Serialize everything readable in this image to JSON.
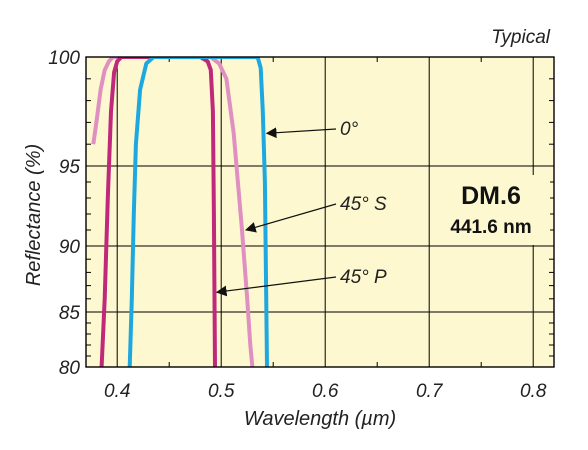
{
  "chart_data": {
    "type": "line",
    "title": "",
    "corner_note": "Typical",
    "xlabel": "Wavelength (µm)",
    "ylabel": "Reflectance (%)",
    "xlim": [
      0.37,
      0.82
    ],
    "ylim": [
      80,
      100
    ],
    "x_ticks": [
      0.4,
      0.5,
      0.6,
      0.7,
      0.8
    ],
    "x_tick_labels": [
      "0.4",
      "0.5",
      "0.6",
      "0.7",
      "0.8"
    ],
    "y_ticks": [
      80,
      85,
      90,
      95,
      100
    ],
    "y_tick_labels": [
      "80",
      "85",
      "90",
      "95",
      "100"
    ],
    "y_scale": "nonlinear (stretched near 100%)",
    "y_scale_anchors": [
      [
        80,
        80
      ],
      [
        85,
        85
      ],
      [
        90,
        90
      ],
      [
        95,
        95
      ],
      [
        100,
        100
      ]
    ],
    "grid": true,
    "badge": {
      "title": "DM.6",
      "subtitle": "441.6 nm"
    },
    "colors": {
      "plot_background": "#fdf8d0",
      "grid": "#000000",
      "zero_deg": "#1ea8e0",
      "s_pol": "#e090c0",
      "p_pol": "#c0287a"
    },
    "series": [
      {
        "label": "0°",
        "color_key": "zero_deg",
        "x": [
          0.412,
          0.414,
          0.416,
          0.418,
          0.422,
          0.428,
          0.435,
          0.445,
          0.5,
          0.535,
          0.538,
          0.54,
          0.542,
          0.544
        ],
        "y": [
          80,
          86,
          92,
          96,
          98.5,
          99.7,
          100,
          100,
          100,
          100,
          99.5,
          97.5,
          94,
          80
        ]
      },
      {
        "label": "45° S",
        "color_key": "s_pol",
        "x": [
          0.377,
          0.38,
          0.384,
          0.388,
          0.392,
          0.396,
          0.4,
          0.408,
          0.43,
          0.49,
          0.498,
          0.505,
          0.512,
          0.52,
          0.525,
          0.528,
          0.53
        ],
        "y": [
          96,
          97,
          98.5,
          99.4,
          99.8,
          100,
          100,
          100,
          100,
          100,
          99.7,
          99,
          96.5,
          91,
          86,
          82,
          80
        ]
      },
      {
        "label": "45° P",
        "color_key": "p_pol",
        "x": [
          0.385,
          0.388,
          0.391,
          0.394,
          0.397,
          0.4,
          0.404,
          0.41,
          0.47,
          0.48,
          0.487,
          0.49,
          0.492,
          0.493,
          0.494
        ],
        "y": [
          80,
          86,
          93,
          97.5,
          99.3,
          99.8,
          100,
          100,
          100,
          100,
          99.8,
          99.4,
          97.5,
          92,
          80
        ]
      }
    ],
    "annotations": [
      {
        "text": "0°",
        "series_index": 0,
        "x": 0.54,
        "y": 96.5
      },
      {
        "text": "45° S",
        "series_index": 1,
        "x": 0.52,
        "y": 91
      },
      {
        "text": "45° P",
        "series_index": 2,
        "x": 0.492,
        "y": 86.5
      }
    ]
  }
}
